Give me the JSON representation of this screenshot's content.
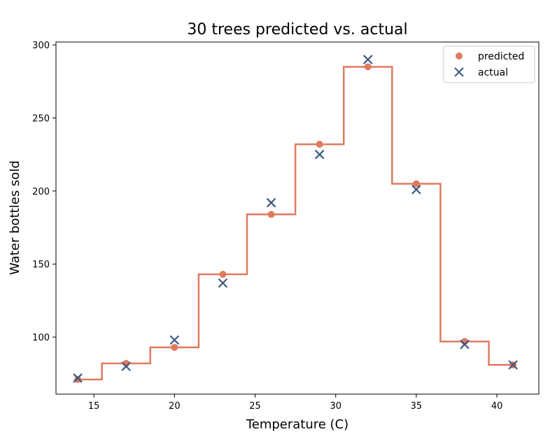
{
  "chart_data": {
    "type": "scatter",
    "title": "30 trees predicted vs. actual",
    "xlabel": "Temperature (C)",
    "ylabel": "Water bottles sold",
    "xlim": [
      12.65,
      42.6
    ],
    "ylim": [
      61,
      302
    ],
    "xticks": [
      15,
      20,
      25,
      30,
      35,
      40
    ],
    "yticks": [
      100,
      150,
      200,
      250,
      300
    ],
    "grid": false,
    "legend_position": "top-right",
    "colors": {
      "predicted": "#e07a5f",
      "actual": "#3d5a80",
      "step_line": "#e07a5f"
    },
    "x": [
      14,
      17,
      20,
      23,
      26,
      29,
      32,
      35,
      38,
      41
    ],
    "series": [
      {
        "name": "predicted",
        "marker": "circle",
        "values": [
          71,
          82,
          93,
          143,
          184,
          232,
          285,
          205,
          97,
          81
        ]
      },
      {
        "name": "actual",
        "marker": "x",
        "values": [
          72,
          80,
          98,
          137,
          192,
          225,
          290,
          201,
          95,
          81
        ]
      }
    ],
    "step_line": {
      "x": [
        14,
        15.5,
        15.5,
        18.5,
        18.5,
        21.5,
        21.5,
        24.5,
        24.5,
        27.5,
        27.5,
        30.5,
        30.5,
        33.5,
        33.5,
        36.5,
        36.5,
        39.5,
        39.5,
        41
      ],
      "y": [
        71,
        71,
        82,
        82,
        93,
        93,
        143,
        143,
        184,
        184,
        232,
        232,
        285,
        285,
        205,
        205,
        97,
        97,
        81,
        81
      ]
    }
  }
}
